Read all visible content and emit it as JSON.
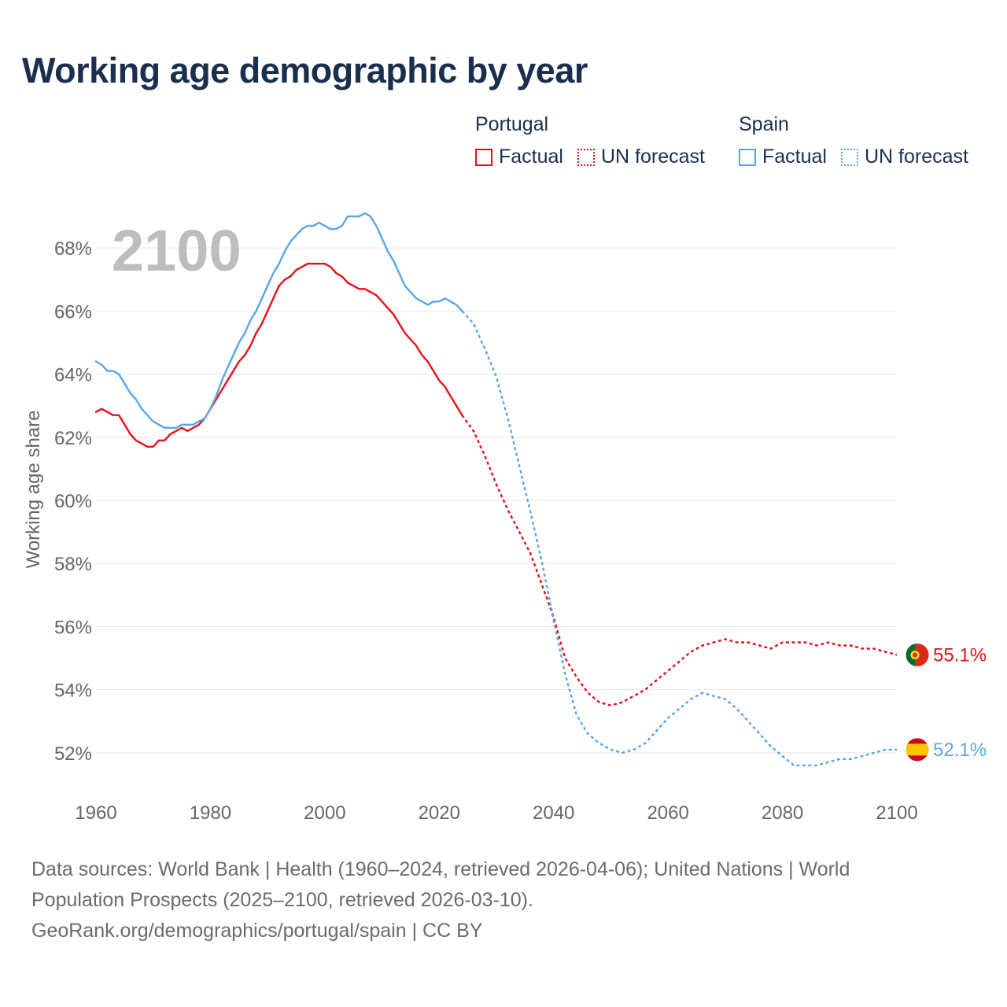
{
  "title": "Working age demographic by year",
  "legend": {
    "portugal": {
      "name": "Portugal",
      "factual": "Factual",
      "forecast": "UN forecast",
      "color": "#e8101a"
    },
    "spain": {
      "name": "Spain",
      "factual": "Factual",
      "forecast": "UN forecast",
      "color": "#5aa6e6"
    }
  },
  "year_watermark": "2100",
  "footer": {
    "sources": "Data sources: World Bank | Health (1960–2024, retrieved 2026-04-06); United Nations | World Population Prospects (2025–2100, retrieved 2026-03-10).",
    "credit": "GeoRank.org/demographics/portugal/spain | CC BY"
  },
  "chart_data": {
    "type": "line",
    "title": "Working age demographic by year",
    "xlabel": "",
    "ylabel": "Working age share",
    "xlim": [
      1960,
      2100
    ],
    "ylim": [
      50.8,
      69.5
    ],
    "x_ticks": [
      1960,
      1980,
      2000,
      2020,
      2040,
      2060,
      2080,
      2100
    ],
    "y_ticks": [
      52,
      54,
      56,
      58,
      60,
      62,
      64,
      66,
      68
    ],
    "y_tick_labels": [
      "52%",
      "54%",
      "56%",
      "58%",
      "60%",
      "62%",
      "64%",
      "66%",
      "68%"
    ],
    "x_tick_labels": [
      "1960",
      "1980",
      "2000",
      "2020",
      "2040",
      "2060",
      "2080",
      "2100"
    ],
    "grid": "horizontal",
    "series": [
      {
        "name": "Portugal — Factual",
        "country": "Portugal",
        "style": "solid",
        "color": "#e8101a",
        "x": [
          1960,
          1961,
          1962,
          1963,
          1964,
          1965,
          1966,
          1967,
          1968,
          1969,
          1970,
          1971,
          1972,
          1973,
          1974,
          1975,
          1976,
          1977,
          1978,
          1979,
          1980,
          1981,
          1982,
          1983,
          1984,
          1985,
          1986,
          1987,
          1988,
          1989,
          1990,
          1991,
          1992,
          1993,
          1994,
          1995,
          1996,
          1997,
          1998,
          1999,
          2000,
          2001,
          2002,
          2003,
          2004,
          2005,
          2006,
          2007,
          2008,
          2009,
          2010,
          2011,
          2012,
          2013,
          2014,
          2015,
          2016,
          2017,
          2018,
          2019,
          2020,
          2021,
          2022,
          2023,
          2024
        ],
        "values": [
          62.8,
          62.9,
          62.8,
          62.7,
          62.7,
          62.4,
          62.1,
          61.9,
          61.8,
          61.7,
          61.7,
          61.9,
          61.9,
          62.1,
          62.2,
          62.3,
          62.2,
          62.3,
          62.4,
          62.6,
          62.9,
          63.2,
          63.5,
          63.8,
          64.1,
          64.4,
          64.6,
          64.9,
          65.3,
          65.6,
          66.0,
          66.4,
          66.8,
          67.0,
          67.1,
          67.3,
          67.4,
          67.5,
          67.5,
          67.5,
          67.5,
          67.4,
          67.2,
          67.1,
          66.9,
          66.8,
          66.7,
          66.7,
          66.6,
          66.5,
          66.3,
          66.1,
          65.9,
          65.6,
          65.3,
          65.1,
          64.9,
          64.6,
          64.4,
          64.1,
          63.8,
          63.6,
          63.3,
          63.0,
          62.7
        ]
      },
      {
        "name": "Portugal — UN forecast",
        "country": "Portugal",
        "style": "dotted",
        "color": "#e8101a",
        "x": [
          2024,
          2026,
          2028,
          2030,
          2032,
          2034,
          2036,
          2038,
          2040,
          2042,
          2044,
          2046,
          2048,
          2050,
          2052,
          2054,
          2056,
          2058,
          2060,
          2062,
          2064,
          2066,
          2068,
          2070,
          2072,
          2074,
          2076,
          2078,
          2080,
          2082,
          2084,
          2086,
          2088,
          2090,
          2092,
          2094,
          2096,
          2098,
          2100
        ],
        "values": [
          62.7,
          62.2,
          61.4,
          60.5,
          59.7,
          59.0,
          58.3,
          57.3,
          56.3,
          55.0,
          54.4,
          53.9,
          53.6,
          53.5,
          53.6,
          53.8,
          54.0,
          54.3,
          54.6,
          54.9,
          55.2,
          55.4,
          55.5,
          55.6,
          55.5,
          55.5,
          55.4,
          55.3,
          55.5,
          55.5,
          55.5,
          55.4,
          55.5,
          55.4,
          55.4,
          55.3,
          55.3,
          55.2,
          55.1
        ]
      },
      {
        "name": "Spain — Factual",
        "country": "Spain",
        "style": "solid",
        "color": "#5aa6e6",
        "x": [
          1960,
          1961,
          1962,
          1963,
          1964,
          1965,
          1966,
          1967,
          1968,
          1969,
          1970,
          1971,
          1972,
          1973,
          1974,
          1975,
          1976,
          1977,
          1978,
          1979,
          1980,
          1981,
          1982,
          1983,
          1984,
          1985,
          1986,
          1987,
          1988,
          1989,
          1990,
          1991,
          1992,
          1993,
          1994,
          1995,
          1996,
          1997,
          1998,
          1999,
          2000,
          2001,
          2002,
          2003,
          2004,
          2005,
          2006,
          2007,
          2008,
          2009,
          2010,
          2011,
          2012,
          2013,
          2014,
          2015,
          2016,
          2017,
          2018,
          2019,
          2020,
          2021,
          2022,
          2023,
          2024
        ],
        "values": [
          64.4,
          64.3,
          64.1,
          64.1,
          64.0,
          63.7,
          63.4,
          63.2,
          62.9,
          62.7,
          62.5,
          62.4,
          62.3,
          62.3,
          62.3,
          62.4,
          62.4,
          62.4,
          62.5,
          62.6,
          62.9,
          63.3,
          63.8,
          64.2,
          64.6,
          65.0,
          65.3,
          65.7,
          66.0,
          66.4,
          66.8,
          67.2,
          67.5,
          67.9,
          68.2,
          68.4,
          68.6,
          68.7,
          68.7,
          68.8,
          68.7,
          68.6,
          68.6,
          68.7,
          69.0,
          69.0,
          69.0,
          69.1,
          69.0,
          68.7,
          68.3,
          67.9,
          67.6,
          67.2,
          66.8,
          66.6,
          66.4,
          66.3,
          66.2,
          66.3,
          66.3,
          66.4,
          66.3,
          66.2,
          66.0
        ]
      },
      {
        "name": "Spain — UN forecast",
        "country": "Spain",
        "style": "dotted",
        "color": "#5aa6e6",
        "x": [
          2024,
          2026,
          2028,
          2030,
          2032,
          2034,
          2036,
          2038,
          2040,
          2042,
          2044,
          2046,
          2048,
          2050,
          2052,
          2054,
          2056,
          2058,
          2060,
          2062,
          2064,
          2066,
          2068,
          2070,
          2072,
          2074,
          2076,
          2078,
          2080,
          2082,
          2084,
          2086,
          2088,
          2090,
          2092,
          2094,
          2096,
          2098,
          2100
        ],
        "values": [
          66.0,
          65.6,
          64.8,
          63.9,
          62.6,
          61.1,
          59.6,
          58.0,
          56.2,
          54.5,
          53.2,
          52.6,
          52.3,
          52.1,
          52.0,
          52.1,
          52.3,
          52.7,
          53.1,
          53.4,
          53.7,
          53.9,
          53.8,
          53.7,
          53.4,
          53.0,
          52.6,
          52.2,
          51.9,
          51.6,
          51.6,
          51.6,
          51.7,
          51.8,
          51.8,
          51.9,
          52.0,
          52.1,
          52.1
        ]
      }
    ],
    "end_labels": [
      {
        "country": "Portugal",
        "value": 55.1,
        "label": "55.1%"
      },
      {
        "country": "Spain",
        "value": 52.1,
        "label": "52.1%"
      }
    ],
    "legend_position": "top-right"
  }
}
